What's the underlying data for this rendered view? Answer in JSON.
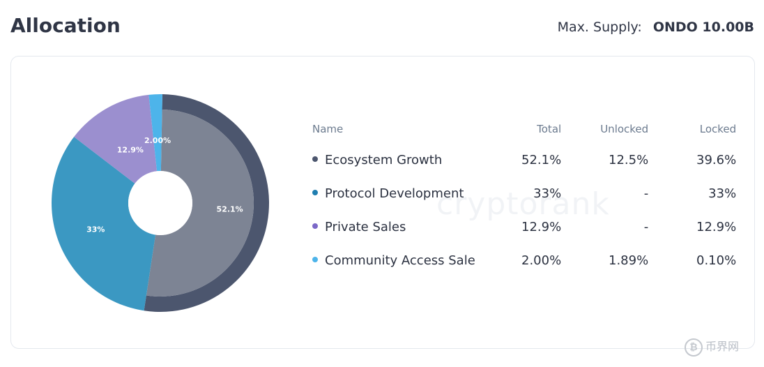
{
  "header": {
    "title": "Allocation",
    "supply_label": "Max. Supply:",
    "supply_value": "ONDO 10.00B"
  },
  "watermark": "cryptorank",
  "logo_text": "币界网",
  "colors": {
    "ecosystem_outer": "#4c566e",
    "ecosystem_inner": "#7d8494",
    "protocol": "#3b98c2",
    "private": "#9b8fcf",
    "community": "#4db4ea",
    "dot_ecosystem": "#4c566e",
    "dot_protocol": "#1f7eb0",
    "dot_private": "#7b68c8",
    "dot_community": "#4db4ea"
  },
  "table": {
    "headers": [
      "Name",
      "Total",
      "Unlocked",
      "Locked"
    ],
    "rows": [
      {
        "name": "Ecosystem Growth",
        "total": "52.1%",
        "unlocked": "12.5%",
        "locked": "39.6%"
      },
      {
        "name": "Protocol Development",
        "total": "33%",
        "unlocked": "-",
        "locked": "33%"
      },
      {
        "name": "Private Sales",
        "total": "12.9%",
        "unlocked": "-",
        "locked": "12.9%"
      },
      {
        "name": "Community Access Sale",
        "total": "2.00%",
        "unlocked": "1.89%",
        "locked": "0.10%"
      }
    ]
  },
  "chart_data": {
    "type": "pie",
    "categories": [
      "Ecosystem Growth",
      "Protocol Development",
      "Private Sales",
      "Community Access Sale"
    ],
    "values": [
      52.1,
      33,
      12.9,
      2.0
    ],
    "labels": [
      "52.1%",
      "33%",
      "12.9%",
      "2.00%"
    ],
    "unlocked": [
      12.5,
      0,
      0,
      1.89
    ],
    "locked": [
      39.6,
      33,
      12.9,
      0.1
    ],
    "title": "",
    "donut": true
  }
}
